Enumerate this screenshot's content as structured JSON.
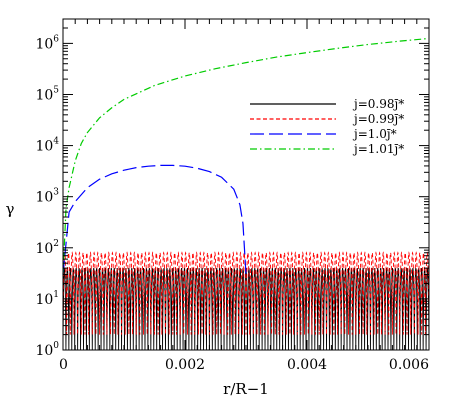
{
  "chart_data": {
    "type": "line",
    "title": "",
    "xlabel": "r/R−1",
    "ylabel": "γ",
    "xlim": [
      0,
      0.006
    ],
    "ylim": [
      1,
      3000000
    ],
    "yscale": "log",
    "grid": false,
    "legend_position": "top-right",
    "x_ticks": [
      "0",
      "0.002",
      "0.004",
      "0.006"
    ],
    "y_ticks": [
      {
        "base": "10",
        "exp": "0"
      },
      {
        "base": "10",
        "exp": "1"
      },
      {
        "base": "10",
        "exp": "2"
      },
      {
        "base": "10",
        "exp": "3"
      },
      {
        "base": "10",
        "exp": "4"
      },
      {
        "base": "10",
        "exp": "5"
      },
      {
        "base": "10",
        "exp": "6"
      }
    ],
    "series": [
      {
        "name": "j=0.98j̄*",
        "color": "#000000",
        "dash": "solid",
        "style": "oscillating",
        "x_range": [
          0,
          0.006
        ],
        "y_min": 1,
        "y_max": 40,
        "oscillations": 125
      },
      {
        "name": "j=0.99j̄*",
        "color": "#ff0000",
        "dash": "short-dash",
        "style": "oscillating",
        "x_range": [
          0,
          0.006
        ],
        "y_min": 2,
        "y_max": 80,
        "oscillations": 100
      },
      {
        "name": "j=1.0j̄*",
        "color": "#0000ff",
        "dash": "long-dash",
        "style": "curve",
        "x": [
          0,
          0.0001,
          0.0002,
          0.0004,
          0.0006,
          0.0008,
          0.001,
          0.0012,
          0.0014,
          0.0016,
          0.0018,
          0.002,
          0.0022,
          0.0024,
          0.0026,
          0.0028,
          0.0029,
          0.00295,
          0.003
        ],
        "y": [
          30,
          500,
          800,
          1500,
          2200,
          2800,
          3300,
          3700,
          3950,
          4100,
          4100,
          3950,
          3600,
          3100,
          2400,
          1400,
          700,
          300,
          30
        ]
      },
      {
        "name": "j=1.01j̄*",
        "color": "#00cc00",
        "dash": "dash-dot",
        "style": "curve",
        "x": [
          0,
          5e-05,
          0.0001,
          0.0002,
          0.0003,
          0.0004,
          0.0006,
          0.0008,
          0.001,
          0.0015,
          0.002,
          0.0025,
          0.003,
          0.0035,
          0.004,
          0.0045,
          0.005,
          0.0055,
          0.006
        ],
        "y": [
          30,
          600,
          1500,
          5000,
          11000,
          18000,
          35000,
          55000,
          80000,
          150000,
          230000,
          320000,
          420000,
          540000,
          660000,
          800000,
          950000,
          1100000,
          1250000
        ]
      }
    ]
  }
}
